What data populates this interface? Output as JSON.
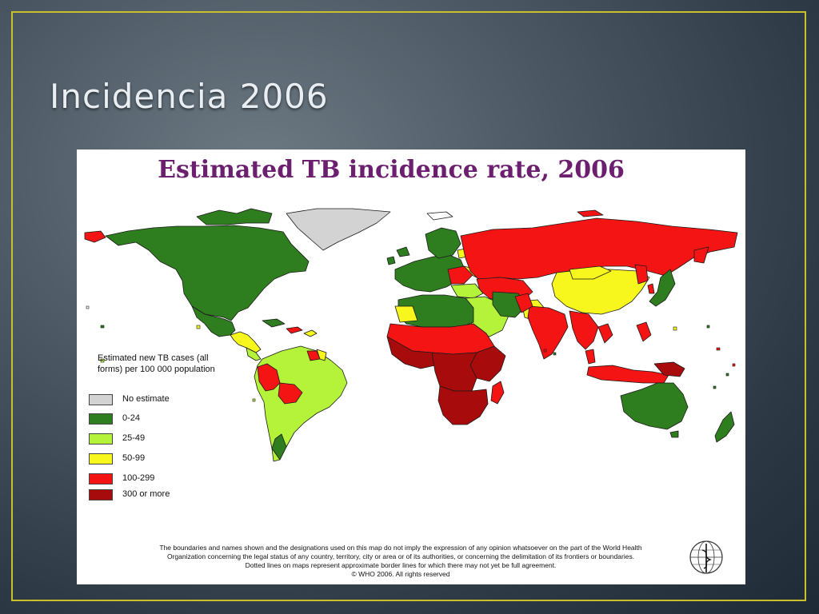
{
  "slide": {
    "title": "Incidencia 2006"
  },
  "map": {
    "title": "Estimated TB incidence rate, 2006",
    "legend": {
      "title": "Estimated new TB cases (all forms) per 100 000 population",
      "items": [
        {
          "label": "No estimate",
          "color": "#d3d3d3"
        },
        {
          "label": "0-24",
          "color": "#2e7d1f"
        },
        {
          "label": "25-49",
          "color": "#b5f23a"
        },
        {
          "label": "50-99",
          "color": "#f7f71d"
        },
        {
          "label": "100-299",
          "color": "#f51414"
        },
        {
          "label": "300 or more",
          "color": "#a80b0b"
        }
      ]
    },
    "disclaimer": [
      "The boundaries and names shown and the designations used on this map do not imply the expression of any opinion whatsoever on the part of the World Health",
      "Organization concerning the legal status of any country, territory, city or area or of its authorities, or concerning the delimitation of its frontiers or boundaries.",
      "Dotted lines on maps represent approximate border lines for which there may not yet be full agreement.",
      "© WHO 2006. All rights reserved"
    ],
    "emblem_icon": "who-emblem-icon"
  },
  "colors": {
    "frame_border": "#c9c02a",
    "title_text": "#e9eef2",
    "map_title": "#6b1f6e"
  }
}
